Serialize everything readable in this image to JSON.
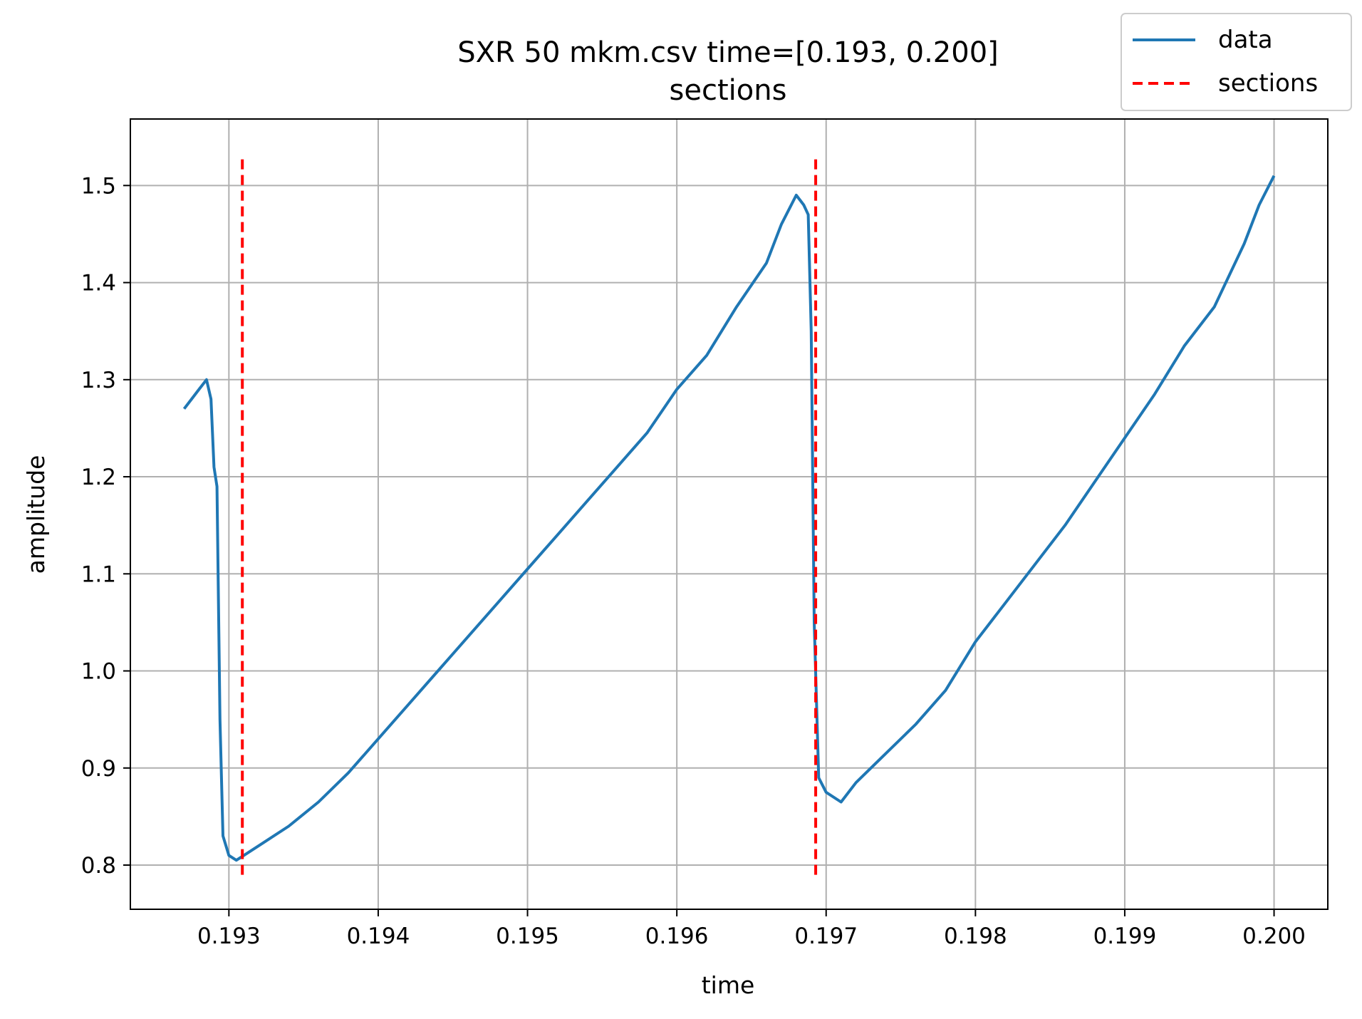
{
  "chart_data": {
    "type": "line",
    "title": "SXR 50 mkm.csv time=[0.193, 0.200]",
    "subtitle": "sections",
    "xlabel": "time",
    "ylabel": "amplitude",
    "xlim": [
      0.19234,
      0.20036
    ],
    "ylim": [
      0.7545,
      1.5685
    ],
    "xticks": [
      0.193,
      0.194,
      0.195,
      0.196,
      0.197,
      0.198,
      0.199,
      0.2
    ],
    "xtick_labels": [
      "0.193",
      "0.194",
      "0.195",
      "0.196",
      "0.197",
      "0.198",
      "0.199",
      "0.200"
    ],
    "yticks": [
      0.8,
      0.9,
      1.0,
      1.1,
      1.2,
      1.3,
      1.4,
      1.5
    ],
    "ytick_labels": [
      "0.8",
      "0.9",
      "1.0",
      "1.1",
      "1.2",
      "1.3",
      "1.4",
      "1.5"
    ],
    "grid": true,
    "legend_position": "top-right outside",
    "series": [
      {
        "name": "data",
        "style": "solid",
        "color": "#1f77b4",
        "x": [
          0.1927,
          0.19275,
          0.1928,
          0.19285,
          0.19288,
          0.1929,
          0.19292,
          0.19294,
          0.19296,
          0.193,
          0.19305,
          0.1931,
          0.1932,
          0.1934,
          0.1936,
          0.1938,
          0.194,
          0.1942,
          0.1944,
          0.1946,
          0.1948,
          0.195,
          0.1952,
          0.1954,
          0.1956,
          0.1958,
          0.196,
          0.1962,
          0.1964,
          0.1966,
          0.1967,
          0.1968,
          0.19685,
          0.19688,
          0.1969,
          0.19692,
          0.19695,
          0.197,
          0.1971,
          0.1972,
          0.1974,
          0.1976,
          0.1978,
          0.198,
          0.1982,
          0.1984,
          0.1986,
          0.1988,
          0.199,
          0.1992,
          0.1994,
          0.1996,
          0.1998,
          0.1999,
          0.2
        ],
        "y": [
          1.27,
          1.28,
          1.29,
          1.3,
          1.28,
          1.21,
          1.19,
          0.95,
          0.83,
          0.81,
          0.805,
          0.81,
          0.82,
          0.84,
          0.865,
          0.895,
          0.93,
          0.965,
          1.0,
          1.035,
          1.07,
          1.105,
          1.14,
          1.175,
          1.21,
          1.245,
          1.29,
          1.325,
          1.375,
          1.42,
          1.46,
          1.49,
          1.48,
          1.47,
          1.35,
          1.05,
          0.89,
          0.875,
          0.865,
          0.885,
          0.915,
          0.945,
          0.98,
          1.03,
          1.07,
          1.11,
          1.15,
          1.195,
          1.24,
          1.285,
          1.335,
          1.375,
          1.44,
          1.48,
          1.51
        ]
      },
      {
        "name": "sections",
        "style": "dashed",
        "color": "#ff0000",
        "vlines": [
          0.19309,
          0.19693
        ],
        "ymin": 0.79,
        "ymax": 1.53
      }
    ]
  }
}
